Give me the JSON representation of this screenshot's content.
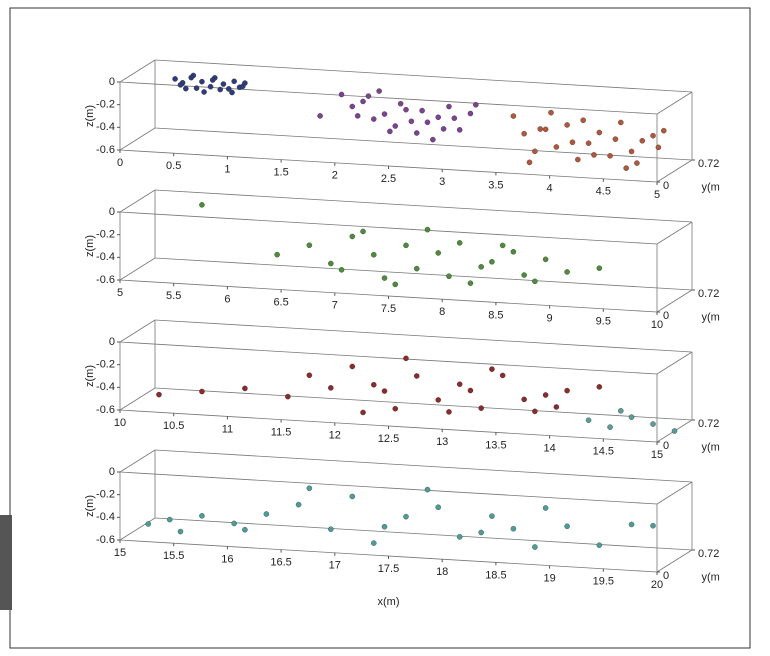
{
  "chart_data": [
    {
      "type": "scatter3d",
      "xlim": [
        0,
        5
      ],
      "ylim": [
        0,
        0.72
      ],
      "zlim": [
        -0.6,
        0
      ],
      "xticks": [
        0,
        0.5,
        1,
        1.5,
        2,
        2.5,
        3,
        3.5,
        4,
        4.5,
        5
      ],
      "yticks": [
        0,
        0.72
      ],
      "zticks": [
        0,
        -0.2,
        -0.4,
        -0.6
      ],
      "zlabel": "z(m)",
      "ylabel": "y(m",
      "series": [
        {
          "color": "#2f3b7c",
          "x": [
            0.35,
            0.42,
            0.5,
            0.55,
            0.6,
            0.68,
            0.72,
            0.8,
            0.85,
            0.9,
            0.95,
            1.0,
            0.45,
            0.62,
            0.77,
            0.88,
            0.52,
            0.7,
            0.98,
            0.4
          ],
          "z": [
            -0.05,
            -0.08,
            -0.03,
            -0.12,
            -0.06,
            -0.1,
            -0.02,
            -0.07,
            -0.11,
            -0.04,
            -0.09,
            -0.05,
            -0.13,
            -0.15,
            -0.12,
            -0.14,
            -0.01,
            -0.04,
            -0.08,
            -0.1
          ]
        },
        {
          "color": "#7b4390",
          "x": [
            1.9,
            2.0,
            2.1,
            2.2,
            2.3,
            2.4,
            2.5,
            2.6,
            2.7,
            2.8,
            2.9,
            3.0,
            3.1,
            2.15,
            2.35,
            2.55,
            2.75,
            2.95,
            2.25,
            2.45,
            2.65,
            2.85,
            2.05,
            3.15,
            1.7
          ],
          "z": [
            -0.1,
            -0.2,
            -0.15,
            -0.3,
            -0.25,
            -0.35,
            -0.2,
            -0.4,
            -0.3,
            -0.25,
            -0.15,
            -0.35,
            -0.2,
            -0.1,
            -0.4,
            -0.3,
            -0.45,
            -0.25,
            -0.05,
            -0.15,
            -0.2,
            -0.35,
            -0.28,
            -0.12,
            -0.3
          ]
        },
        {
          "color": "#b0573c",
          "x": [
            3.5,
            3.6,
            3.7,
            3.8,
            3.9,
            4.0,
            4.1,
            4.2,
            4.3,
            4.4,
            4.5,
            4.6,
            4.7,
            4.8,
            4.9,
            3.65,
            3.85,
            4.05,
            4.25,
            4.45,
            4.65,
            4.85,
            3.75,
            4.15,
            4.55
          ],
          "z": [
            -0.2,
            -0.35,
            -0.5,
            -0.3,
            -0.45,
            -0.25,
            -0.55,
            -0.4,
            -0.3,
            -0.5,
            -0.2,
            -0.45,
            -0.35,
            -0.3,
            -0.25,
            -0.6,
            -0.15,
            -0.4,
            -0.5,
            -0.35,
            -0.55,
            -0.4,
            -0.3,
            -0.2,
            -0.6
          ]
        }
      ]
    },
    {
      "type": "scatter3d",
      "xlim": [
        5,
        10
      ],
      "ylim": [
        0,
        0.72
      ],
      "zlim": [
        -0.6,
        0
      ],
      "xticks": [
        5,
        5.5,
        6,
        6.5,
        7,
        7.5,
        8,
        8.5,
        9,
        9.5,
        10
      ],
      "yticks": [
        0,
        0.72
      ],
      "zticks": [
        0,
        -0.2,
        -0.4,
        -0.6
      ],
      "zlabel": "z(m)",
      "ylabel": "y(m",
      "series": [
        {
          "color": "#4f8b3d",
          "x": [
            6.3,
            6.6,
            6.9,
            7.0,
            7.2,
            7.3,
            7.5,
            7.6,
            7.8,
            7.9,
            8.0,
            8.2,
            8.3,
            8.5,
            8.6,
            8.8,
            9.0,
            7.1,
            7.4,
            7.7,
            8.1,
            8.4,
            8.7,
            6.8,
            9.3,
            5.6
          ],
          "z": [
            -0.4,
            -0.3,
            -0.5,
            -0.2,
            -0.35,
            -0.55,
            -0.25,
            -0.45,
            -0.3,
            -0.5,
            -0.2,
            -0.4,
            -0.35,
            -0.25,
            -0.45,
            -0.3,
            -0.4,
            -0.15,
            -0.6,
            -0.1,
            -0.55,
            -0.2,
            -0.5,
            -0.45,
            -0.35,
            0
          ]
        }
      ]
    },
    {
      "type": "scatter3d",
      "xlim": [
        10,
        15
      ],
      "ylim": [
        0,
        0.72
      ],
      "zlim": [
        -0.6,
        0
      ],
      "xticks": [
        10,
        10.5,
        11,
        11.5,
        12,
        12.5,
        13,
        13.5,
        14,
        14.5,
        15
      ],
      "yticks": [
        0,
        0.72
      ],
      "zticks": [
        0,
        -0.2,
        -0.4,
        -0.6
      ],
      "zlabel": "z(m)",
      "ylabel": "y(m",
      "series": [
        {
          "color": "#8c2b2b",
          "x": [
            10.2,
            10.6,
            11.0,
            11.4,
            11.8,
            12.0,
            12.2,
            12.4,
            12.6,
            12.8,
            13.0,
            13.2,
            13.4,
            13.6,
            13.8,
            14.0,
            12.1,
            12.5,
            12.9,
            13.3,
            13.7,
            11.6,
            12.3,
            13.1,
            13.9,
            14.3
          ],
          "z": [
            -0.55,
            -0.5,
            -0.45,
            -0.5,
            -0.4,
            -0.2,
            -0.35,
            -0.55,
            -0.25,
            -0.45,
            -0.3,
            -0.5,
            -0.2,
            -0.4,
            -0.35,
            -0.3,
            -0.6,
            -0.1,
            -0.55,
            -0.15,
            -0.5,
            -0.3,
            -0.4,
            -0.35,
            -0.45,
            -0.25
          ]
        },
        {
          "color": "#5a9c9a",
          "x": [
            14.2,
            14.4,
            14.6,
            14.8,
            15.0,
            14.5
          ],
          "z": [
            -0.55,
            -0.6,
            -0.5,
            -0.55,
            -0.6,
            -0.45
          ]
        }
      ]
    },
    {
      "type": "scatter3d",
      "xlim": [
        15,
        20
      ],
      "ylim": [
        0,
        0.72
      ],
      "zlim": [
        -0.6,
        0
      ],
      "xticks": [
        15,
        15.5,
        16,
        16.5,
        17,
        17.5,
        18,
        18.5,
        19,
        19.5,
        20
      ],
      "yticks": [
        0,
        0.72
      ],
      "zticks": [
        0,
        -0.2,
        -0.4,
        -0.6
      ],
      "zlabel": "z(m)",
      "ylabel": "y(m",
      "xlabel": "x(m)",
      "series": [
        {
          "color": "#4d9c98",
          "x": [
            15.1,
            15.3,
            15.6,
            15.9,
            16.2,
            16.5,
            16.8,
            17.0,
            17.3,
            17.5,
            17.8,
            18.0,
            18.3,
            18.5,
            18.8,
            19.0,
            19.3,
            19.6,
            16.0,
            17.2,
            17.7,
            18.2,
            18.7,
            16.6,
            19.8,
            15.4
          ],
          "z": [
            -0.55,
            -0.5,
            -0.45,
            -0.5,
            -0.4,
            -0.3,
            -0.5,
            -0.2,
            -0.45,
            -0.35,
            -0.25,
            -0.5,
            -0.3,
            -0.4,
            -0.2,
            -0.35,
            -0.5,
            -0.3,
            -0.55,
            -0.6,
            -0.1,
            -0.45,
            -0.55,
            -0.15,
            -0.3,
            -0.6
          ]
        }
      ]
    }
  ]
}
